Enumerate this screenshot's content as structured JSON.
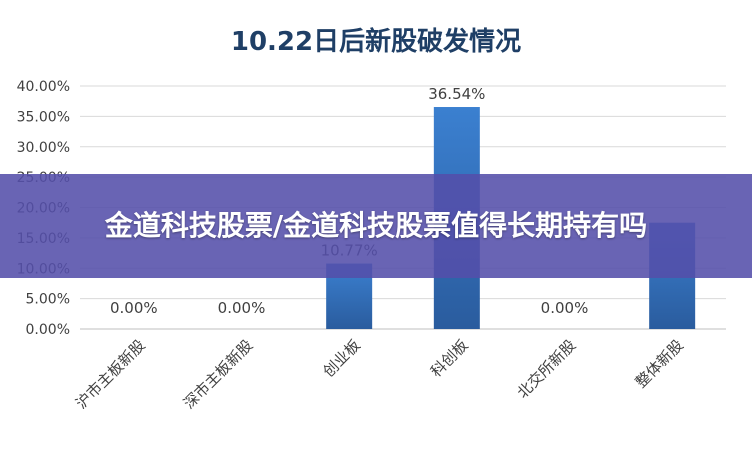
{
  "chart_data": {
    "type": "bar",
    "title": "10.22日后新股破发情况",
    "categories": [
      "沪市主板新股",
      "深市主板新股",
      "创业板",
      "科创板",
      "北交所新股",
      "整体新股"
    ],
    "values": [
      0.0,
      0.0,
      10.77,
      36.54,
      0.0,
      17.5
    ],
    "data_labels": [
      "0.00%",
      "0.00%",
      "10.77%",
      "36.54%",
      "0.00%",
      ""
    ],
    "ylim": [
      0,
      40
    ],
    "yticks": [
      "0.00%",
      "5.00%",
      "10.00%",
      "15.00%",
      "20.00%",
      "25.00%",
      "30.00%",
      "35.00%",
      "40.00%"
    ],
    "xlabel": "",
    "ylabel": "",
    "grid": true,
    "bar_color": "#2e6db5"
  },
  "overlay": {
    "headline": "金道科技股票/金道科技股票值得长期持有吗"
  }
}
